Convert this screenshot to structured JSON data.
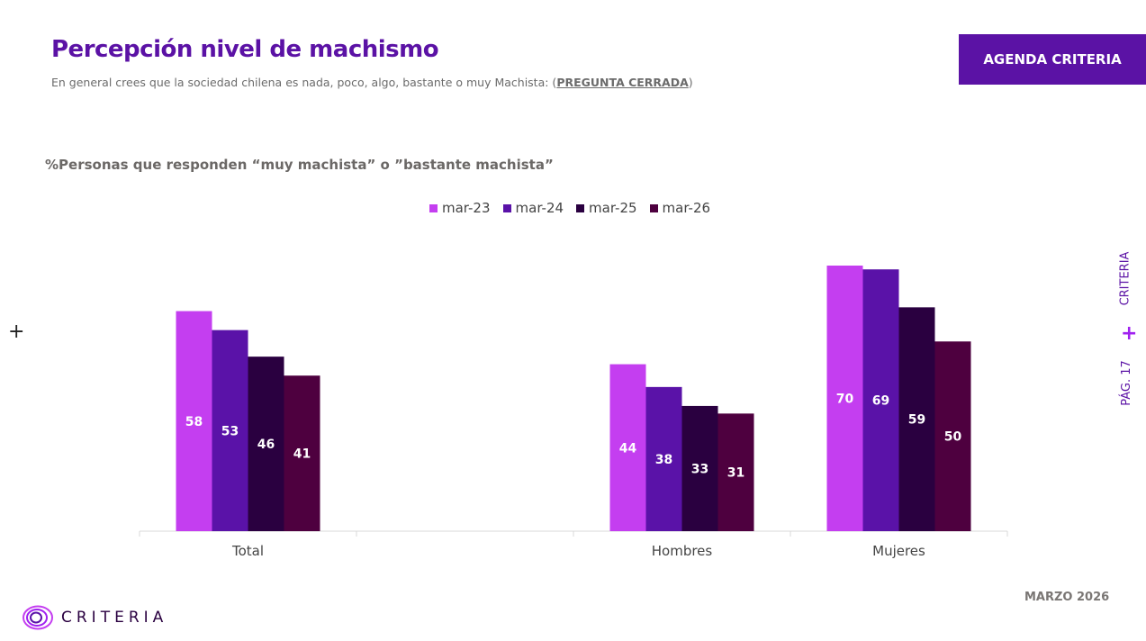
{
  "header": {
    "title": "Percepción nivel de machismo",
    "subtitle": "En general crees que la sociedad chilena es nada, poco, algo, bastante o muy Machista: (",
    "subtitle_link": "PREGUNTA CERRADA",
    "subtitle_end": ")",
    "badge": "AGENDA CRITERIA"
  },
  "side": {
    "brand": "CRITERIA",
    "page": "PÁG. 17"
  },
  "footer": {
    "date": "MARZO 2026",
    "logo": "CRITERIA"
  },
  "chart_data": {
    "type": "bar",
    "title": "%Personas que responden “muy machista” o ”bastante machista”",
    "categories": [
      "Total",
      "",
      "Hombres",
      "Mujeres"
    ],
    "series": [
      {
        "name": "mar-23",
        "color": "#c43ef0",
        "values": [
          58,
          null,
          44,
          70
        ]
      },
      {
        "name": "mar-24",
        "color": "#5a12a8",
        "values": [
          53,
          null,
          38,
          69
        ]
      },
      {
        "name": "mar-25",
        "color": "#2a0040",
        "values": [
          46,
          null,
          33,
          59
        ]
      },
      {
        "name": "mar-26",
        "color": "#4e003f",
        "values": [
          41,
          null,
          31,
          50
        ]
      }
    ],
    "ylim": [
      0,
      70
    ],
    "legend": "top",
    "grid": false
  }
}
